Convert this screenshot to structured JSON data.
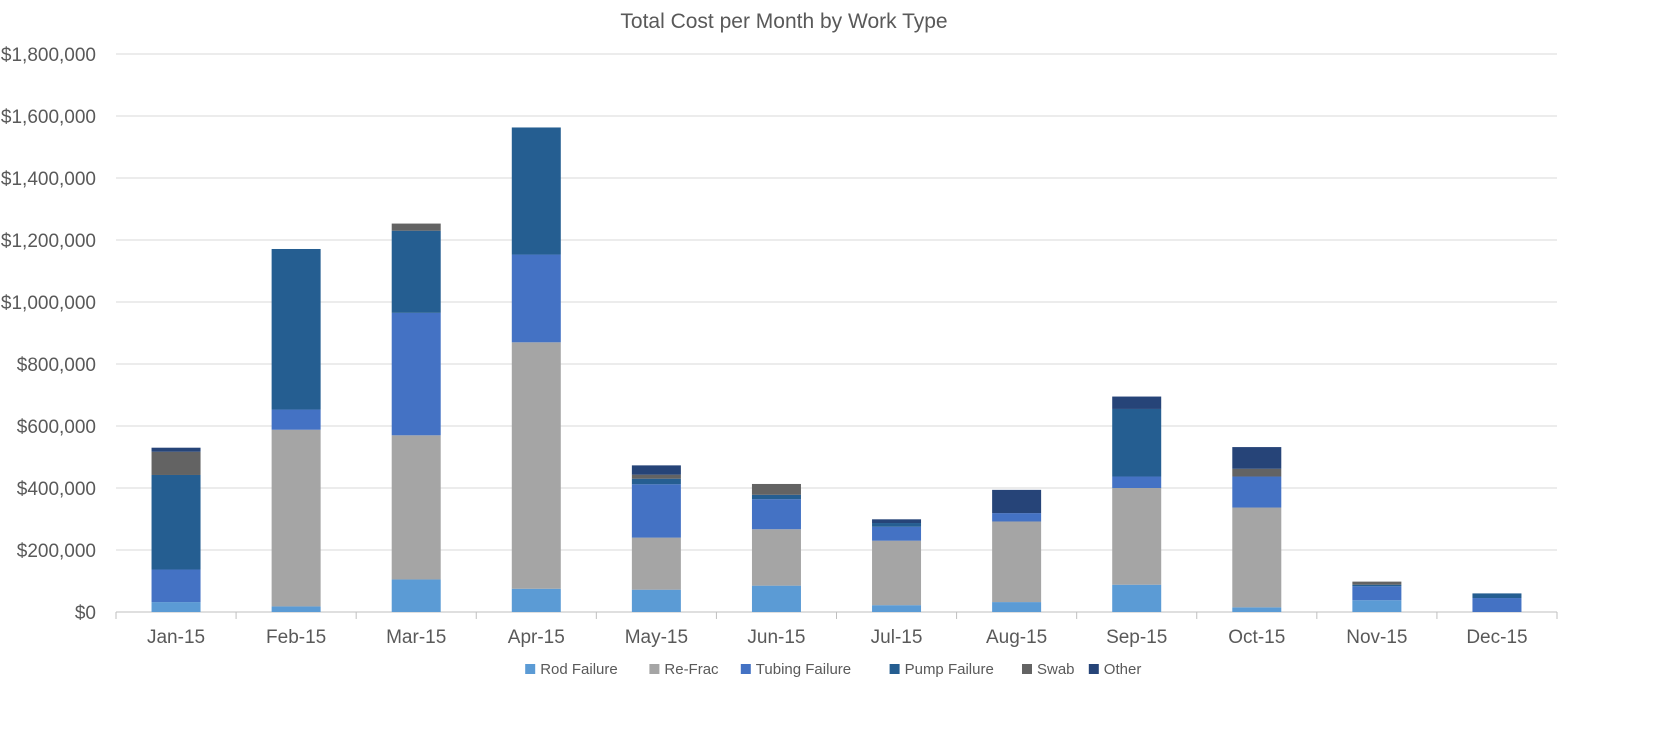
{
  "chart_data": {
    "type": "bar",
    "stacked": true,
    "title": "Total Cost per Month by Work Type",
    "xlabel": "",
    "ylabel": "",
    "ylim": [
      0,
      1800000
    ],
    "yticks": [
      0,
      200000,
      400000,
      600000,
      800000,
      1000000,
      1200000,
      1400000,
      1600000,
      1800000
    ],
    "ytick_labels": [
      "$0",
      "$200,000",
      "$400,000",
      "$600,000",
      "$800,000",
      "$1,000,000",
      "$1,200,000",
      "$1,400,000",
      "$1,600,000",
      "$1,800,000"
    ],
    "grid": true,
    "legend_position": "bottom",
    "categories": [
      "Jan-15",
      "Feb-15",
      "Mar-15",
      "Apr-15",
      "May-15",
      "Jun-15",
      "Jul-15",
      "Aug-15",
      "Sep-15",
      "Oct-15",
      "Nov-15",
      "Dec-15"
    ],
    "series": [
      {
        "name": "Rod Failure",
        "color": "#5B9BD5",
        "values": [
          32000,
          18000,
          105000,
          75000,
          72000,
          85000,
          22000,
          32000,
          88000,
          15000,
          38000,
          0
        ]
      },
      {
        "name": "Re-Frac",
        "color": "#A5A5A5",
        "values": [
          0,
          570000,
          465000,
          795000,
          168000,
          182000,
          208000,
          260000,
          312000,
          322000,
          0,
          0
        ]
      },
      {
        "name": "Tubing Failure",
        "color": "#4472C4",
        "values": [
          105000,
          65000,
          395000,
          283000,
          172000,
          97000,
          45000,
          27000,
          37000,
          100000,
          45000,
          45000
        ]
      },
      {
        "name": "Pump Failure",
        "color": "#255E91",
        "values": [
          305000,
          518000,
          265000,
          410000,
          18000,
          14000,
          12000,
          0,
          218000,
          0,
          5000,
          15000
        ]
      },
      {
        "name": "Swab",
        "color": "#636363",
        "values": [
          75000,
          0,
          23000,
          0,
          13000,
          35000,
          0,
          0,
          0,
          25000,
          10000,
          0
        ]
      },
      {
        "name": "Other",
        "color": "#264478",
        "values": [
          13000,
          0,
          0,
          0,
          30000,
          0,
          12000,
          75000,
          40000,
          70000,
          0,
          0
        ]
      }
    ]
  }
}
